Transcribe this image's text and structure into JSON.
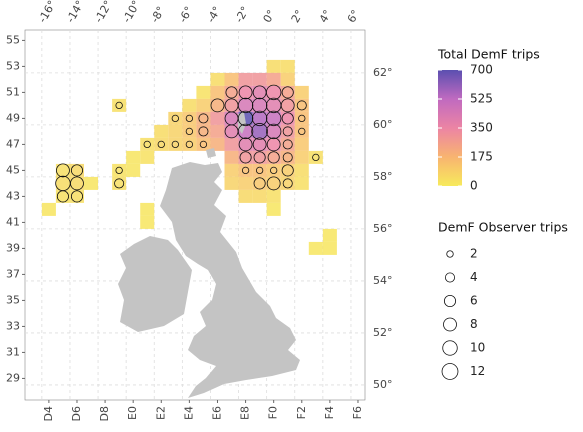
{
  "chart_data": {
    "type": "heatmap",
    "xlim": [
      -17.2,
      7.0
    ],
    "ylim": [
      49.42,
      63.65
    ],
    "xticks": [
      {
        "value": -15.5,
        "label": "D4"
      },
      {
        "value": -13.5,
        "label": "D6"
      },
      {
        "value": -11.5,
        "label": "D8"
      },
      {
        "value": -9.5,
        "label": "E0"
      },
      {
        "value": -7.5,
        "label": "E2"
      },
      {
        "value": -5.5,
        "label": "E4"
      },
      {
        "value": -3.5,
        "label": "E6"
      },
      {
        "value": -1.5,
        "label": "E8"
      },
      {
        "value": 0.5,
        "label": "F0"
      },
      {
        "value": 2.5,
        "label": "F2"
      },
      {
        "value": 4.5,
        "label": "F4"
      },
      {
        "value": 6.5,
        "label": "F6"
      }
    ],
    "x2ticks": [
      {
        "value": -16,
        "label": "-16°"
      },
      {
        "value": -14,
        "label": "-14°"
      },
      {
        "value": -12,
        "label": "-12°"
      },
      {
        "value": -10,
        "label": "-10°"
      },
      {
        "value": -8,
        "label": "-8°"
      },
      {
        "value": -6,
        "label": "-6°"
      },
      {
        "value": -4,
        "label": "-4°"
      },
      {
        "value": -2,
        "label": "-2°"
      },
      {
        "value": 0,
        "label": "0°"
      },
      {
        "value": 2,
        "label": "2°"
      },
      {
        "value": 4,
        "label": "4°"
      },
      {
        "value": 6,
        "label": "6°"
      }
    ],
    "yticks": [
      {
        "value": 63.25,
        "label": "55"
      },
      {
        "value": 62.25,
        "label": "53"
      },
      {
        "value": 61.25,
        "label": "51"
      },
      {
        "value": 60.25,
        "label": "49"
      },
      {
        "value": 59.25,
        "label": "47"
      },
      {
        "value": 58.25,
        "label": "45"
      },
      {
        "value": 57.25,
        "label": "43"
      },
      {
        "value": 56.25,
        "label": "41"
      },
      {
        "value": 55.25,
        "label": "39"
      },
      {
        "value": 54.25,
        "label": "37"
      },
      {
        "value": 53.25,
        "label": "35"
      },
      {
        "value": 52.25,
        "label": "33"
      },
      {
        "value": 51.25,
        "label": "31"
      },
      {
        "value": 50.25,
        "label": "29"
      }
    ],
    "y2ticks": [
      {
        "value": 62,
        "label": "62°"
      },
      {
        "value": 60,
        "label": "60°"
      },
      {
        "value": 58,
        "label": "58°"
      },
      {
        "value": 56,
        "label": "56°"
      },
      {
        "value": 54,
        "label": "54°"
      },
      {
        "value": 52,
        "label": "52°"
      },
      {
        "value": 50,
        "label": "50°"
      }
    ],
    "grid": true,
    "x": [
      0.5,
      1.5,
      -3.5,
      -2.5,
      -1.5,
      -0.5,
      0.5,
      1.5,
      -4.5,
      -3.5,
      -2.5,
      -1.5,
      -0.5,
      0.5,
      1.5,
      2.5,
      -10.5,
      -5.5,
      -4.5,
      -3.5,
      -2.5,
      -1.5,
      -0.5,
      0.5,
      1.5,
      2.5,
      -6.5,
      -5.5,
      -4.5,
      -3.5,
      -2.5,
      -1.5,
      -0.5,
      0.5,
      1.5,
      2.5,
      -7.5,
      -6.5,
      -5.5,
      -4.5,
      -3.5,
      -2.5,
      -1.5,
      -0.5,
      0.5,
      1.5,
      2.5,
      -8.5,
      -7.5,
      -6.5,
      -5.5,
      -4.5,
      -3.5,
      -2.5,
      -1.5,
      -0.5,
      0.5,
      1.5,
      2.5,
      -9.5,
      -8.5,
      -2.5,
      -1.5,
      -0.5,
      0.5,
      1.5,
      2.5,
      3.5,
      -14.5,
      -13.5,
      -10.5,
      -9.5,
      -2.5,
      -1.5,
      -0.5,
      0.5,
      1.5,
      2.5,
      -14.5,
      -13.5,
      -12.5,
      -10.5,
      -2.5,
      -1.5,
      -0.5,
      0.5,
      1.5,
      2.5,
      -14.5,
      -13.5,
      -1.5,
      -0.5,
      0.5,
      -15.5,
      -8.5,
      0.5,
      -8.5,
      4.5,
      3.5,
      4.5
    ],
    "y": [
      62.25,
      62.25,
      61.75,
      61.75,
      61.75,
      61.75,
      61.75,
      61.75,
      61.25,
      61.25,
      61.25,
      61.25,
      61.25,
      61.25,
      61.25,
      61.25,
      60.75,
      60.75,
      60.75,
      60.75,
      60.75,
      60.75,
      60.75,
      60.75,
      60.75,
      60.75,
      60.25,
      60.25,
      60.25,
      60.25,
      60.25,
      60.25,
      60.25,
      60.25,
      60.25,
      60.25,
      59.75,
      59.75,
      59.75,
      59.75,
      59.75,
      59.75,
      59.75,
      59.75,
      59.75,
      59.75,
      59.75,
      59.25,
      59.25,
      59.25,
      59.25,
      59.25,
      59.25,
      59.25,
      59.25,
      59.25,
      59.25,
      59.25,
      59.25,
      58.75,
      58.75,
      58.75,
      58.75,
      58.75,
      58.75,
      58.75,
      58.75,
      58.75,
      58.25,
      58.25,
      58.25,
      58.25,
      58.25,
      58.25,
      58.25,
      58.25,
      58.25,
      58.25,
      57.75,
      57.75,
      57.75,
      57.75,
      57.75,
      57.75,
      57.75,
      57.75,
      57.75,
      57.75,
      57.25,
      57.25,
      57.25,
      57.25,
      57.25,
      56.75,
      56.75,
      56.75,
      56.25,
      55.75,
      55.25,
      55.25
    ],
    "values": [
      50,
      50,
      50,
      150,
      300,
      300,
      250,
      100,
      30,
      150,
      250,
      350,
      400,
      350,
      250,
      100,
      40,
      50,
      100,
      200,
      300,
      450,
      450,
      400,
      300,
      150,
      80,
      120,
      200,
      300,
      450,
      700,
      550,
      500,
      350,
      150,
      50,
      80,
      120,
      200,
      250,
      400,
      500,
      600,
      450,
      300,
      150,
      40,
      60,
      80,
      100,
      150,
      200,
      300,
      400,
      400,
      350,
      250,
      120,
      20,
      30,
      200,
      300,
      300,
      250,
      200,
      100,
      40,
      40,
      60,
      30,
      20,
      100,
      150,
      150,
      120,
      100,
      50,
      50,
      60,
      20,
      40,
      80,
      100,
      120,
      100,
      80,
      40,
      30,
      40,
      60,
      60,
      40,
      20,
      15,
      15,
      15,
      15,
      15,
      15
    ],
    "sizes": [
      null,
      null,
      null,
      null,
      null,
      null,
      null,
      null,
      null,
      null,
      6,
      8,
      8,
      10,
      6,
      null,
      2,
      null,
      null,
      8,
      8,
      10,
      10,
      10,
      8,
      4,
      2,
      2,
      4,
      null,
      8,
      10,
      10,
      10,
      6,
      2,
      null,
      null,
      2,
      4,
      null,
      8,
      10,
      12,
      10,
      4,
      2,
      2,
      2,
      2,
      2,
      2,
      null,
      null,
      8,
      8,
      8,
      4,
      null,
      null,
      null,
      null,
      6,
      6,
      6,
      4,
      null,
      2,
      8,
      6,
      2,
      null,
      null,
      2,
      2,
      2,
      6,
      null,
      10,
      8,
      null,
      4,
      null,
      null,
      6,
      8,
      4,
      null,
      6,
      6,
      null,
      null,
      null,
      null,
      null,
      null,
      null,
      null,
      null,
      null
    ],
    "colorbar": {
      "title": "Total DemF trips",
      "lim": [
        0,
        700
      ],
      "ticks": [
        0,
        175,
        350,
        525,
        700
      ],
      "colors": [
        "#f7ea5c",
        "#f8b470",
        "#ec84a4",
        "#c06ac0",
        "#5b4fb0"
      ]
    },
    "size_legend": {
      "title": "DemF Observer trips",
      "values": [
        2,
        4,
        6,
        8,
        10,
        12
      ]
    },
    "land_color": "#c4c4c4"
  }
}
